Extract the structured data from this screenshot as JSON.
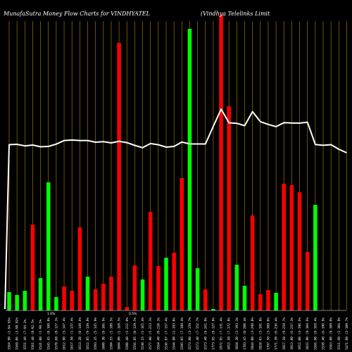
{
  "header": {
    "left_title": "MunafaSutra  Money Flow  Charts for VINDHYATEL",
    "right_title": "(Vindhya  Telelinks Limit"
  },
  "colors": {
    "background": "#000000",
    "grid": "#b8860b",
    "up": "#00ff00",
    "down": "#ff0000",
    "price_line": "#ffffff",
    "text": "#ffffff"
  },
  "chart_data": {
    "type": "bar",
    "title": "MunafaSutra  Money Flow  Charts for VINDHYATEL",
    "subtitle": "(Vindhya  Telelinks Limit",
    "grid": true,
    "categories": [
      "1564.90 (2-94.95%",
      "1569.06 (3-98.92%",
      "1551.40 (7-94.2%",
      "1561.40 (8-92.5%",
      "1541.00 (1-99.5%",
      "1545.45 (0-108.0%",
      "1570.60 (8-127.3%",
      "1612.90 (5-147.4%",
      "1617.50 (1-137.4%",
      "1613.20 (0-149.6%",
      "1612.85 (9-139.8%",
      "1593.35 (5-145.9%",
      "1600.30 (9-166.9%",
      "1584.55 (1-188.5%",
      "1604.00 (1-168.5%",
      "1588.40 (1-212.0%",
      "1556.95 (0-129.5%",
      "1530.15 (1-165.4%",
      "1577.90 (5-213.1%",
      "1564.40 (0-210.3%",
      "1536.87 (7-157.4%",
      "1544.90 (2-193.0%",
      "1595.05 (7-198.4%",
      "1573.80 (3-159.7%",
      "1573.40 (7-152.7%",
      "1573.40 (9-261.8%",
      "1773.95 (8-127.8%",
      "1972.95 (7-131.4%",
      "1815.50 (7-172.8%",
      "1810.30 (2-193.3%",
      "1783.45 (0-200.4%",
      "1944.00 (3-298.8%",
      "1828.65 (3-191.8%",
      "1797.50 (3-309.0%",
      "1771.50 (6-236.4%",
      "1817.10 (9-258.7%",
      "1813.80 (6-257.3%",
      "1812.00 (4-196.6%",
      "1822.80 (9-104.6%",
      "1566.90 (9-168.4%",
      "1558.40 (6-190.9%",
      "1565.00 (9-108.0%",
      "1511.60 (1-104.8%",
      "1471.80 (2-109.7%"
    ],
    "series": [
      {
        "kind": "money_flow_bars",
        "directions": [
          "up",
          "up",
          "up",
          "down",
          "up",
          "up",
          "up",
          "down",
          "down",
          "down",
          "up",
          "down",
          "down",
          "down",
          "down",
          "down",
          "down",
          "up",
          "down",
          "down",
          "up",
          "down",
          "down",
          "up",
          "up",
          "down",
          "up",
          "down",
          "down",
          "up",
          "up",
          "down",
          "down",
          "down",
          "up",
          "down",
          "down",
          "down",
          "down",
          "up",
          "up",
          "down",
          "down",
          "down"
        ],
        "values": [
          26,
          22,
          28,
          122,
          46,
          182,
          19,
          34,
          28,
          118,
          48,
          30,
          38,
          48,
          380,
          5,
          64,
          44,
          140,
          63,
          75,
          82,
          188,
          400,
          60,
          30,
          2,
          420,
          290,
          65,
          35,
          135,
          23,
          29,
          25,
          180,
          178,
          168,
          83,
          150,
          0,
          0,
          0,
          0
        ]
      },
      {
        "kind": "price_line",
        "values": [
          1565,
          1569,
          1551,
          1561,
          1541,
          1545,
          1571,
          1613,
          1618,
          1613,
          1613,
          1593,
          1600,
          1585,
          1604,
          1588,
          1557,
          1530,
          1578,
          1564,
          1537,
          1545,
          1595,
          1574,
          1573,
          1573,
          1774,
          1973,
          1816,
          1810,
          1783,
          1944,
          1829,
          1798,
          1772,
          1817,
          1814,
          1812,
          1823,
          1567,
          1558,
          1565,
          1512,
          1472
        ]
      }
    ],
    "xlabel": "",
    "ylabel": ""
  },
  "annotations": [
    "1.6%",
    "0.5%"
  ]
}
